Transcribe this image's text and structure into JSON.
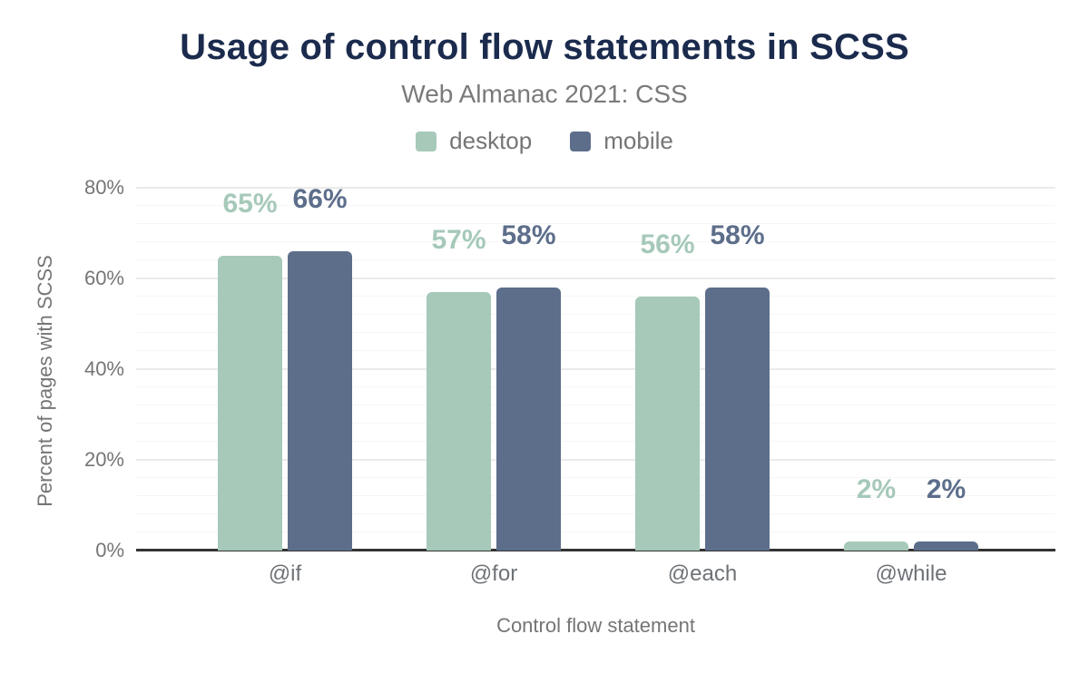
{
  "chart_data": {
    "type": "bar",
    "title": "Usage of control flow statements in SCSS",
    "subtitle": "Web Almanac 2021: CSS",
    "xlabel": "Control flow statement",
    "ylabel": "Percent of pages with SCSS",
    "categories": [
      "@if",
      "@for",
      "@each",
      "@while"
    ],
    "series": [
      {
        "name": "desktop",
        "color": "#a6c9b9",
        "values": [
          65,
          57,
          56,
          2
        ],
        "labels": [
          "65%",
          "57%",
          "56%",
          "2%"
        ]
      },
      {
        "name": "mobile",
        "color": "#5d6e8b",
        "values": [
          66,
          58,
          58,
          2
        ],
        "labels": [
          "66%",
          "58%",
          "58%",
          "2%"
        ]
      }
    ],
    "ylim": [
      0,
      80
    ],
    "ytick_step": 20,
    "minor_tick_step": 4,
    "yticks": [
      "0%",
      "20%",
      "40%",
      "60%",
      "80%"
    ],
    "grid": true,
    "legend_position": "top"
  },
  "colors": {
    "title_text": "#1b2b4d",
    "muted_text": "#757575",
    "axis_line": "#333333",
    "gridline_major": "#ebebeb",
    "gridline_minor": "#f6f6f6",
    "desktop": "#a6c9b9",
    "mobile": "#5d6e8b"
  }
}
